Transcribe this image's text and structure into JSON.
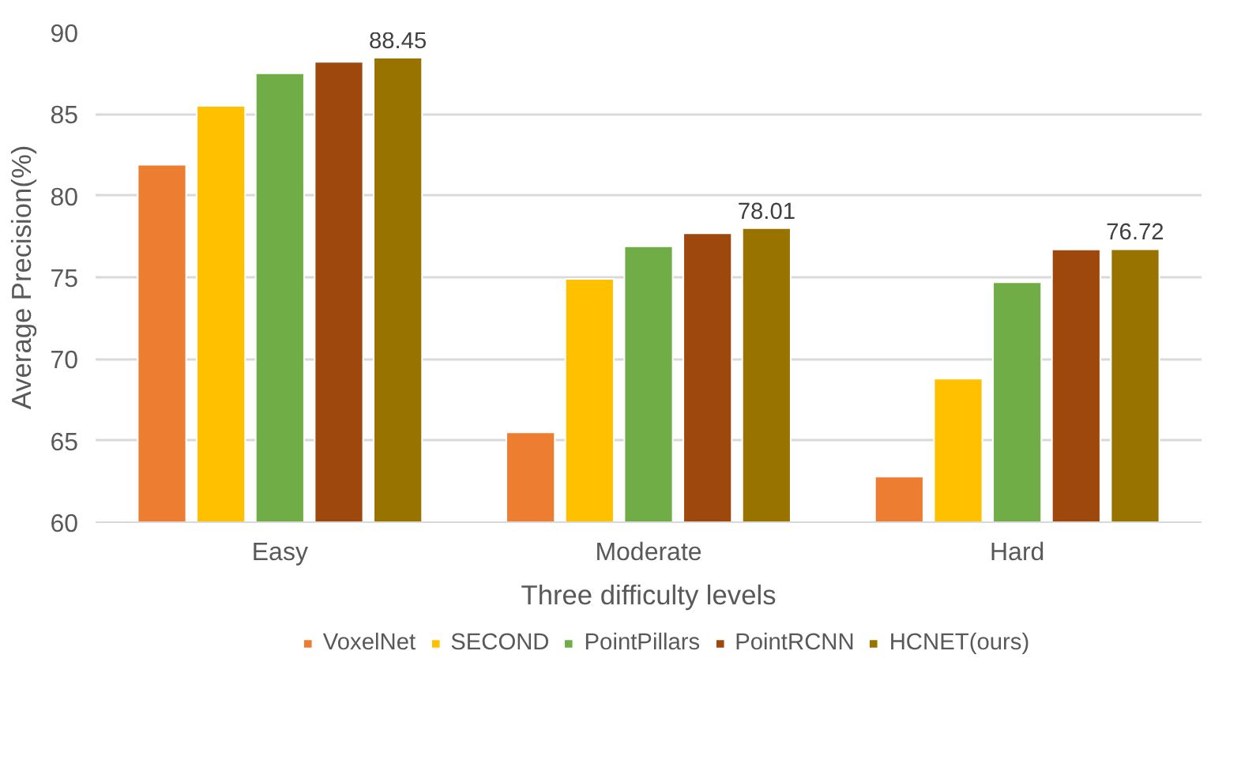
{
  "chart_data": {
    "type": "bar",
    "xlabel": "Three difficulty levels",
    "ylabel": "Average Precision(%)",
    "categories": [
      "Easy",
      "Moderate",
      "Hard"
    ],
    "series": [
      {
        "name": "VoxelNet",
        "color": "#ed7d31",
        "values": [
          81.9,
          65.5,
          62.8
        ]
      },
      {
        "name": "SECOND",
        "color": "#ffc000",
        "values": [
          85.5,
          74.9,
          68.8
        ]
      },
      {
        "name": "PointPillars",
        "color": "#70ad47",
        "values": [
          87.5,
          76.9,
          74.7
        ]
      },
      {
        "name": "PointRCNN",
        "color": "#9e480e",
        "values": [
          88.2,
          77.7,
          76.7
        ]
      },
      {
        "name": "HCNET(ours)",
        "color": "#997300",
        "values": [
          88.45,
          78.01,
          76.72
        ],
        "value_labels": [
          "88.45",
          "78.01",
          "76.72"
        ]
      }
    ],
    "ylim": [
      60,
      90
    ],
    "yticks": [
      60,
      65,
      70,
      75,
      80,
      85,
      90
    ],
    "grid": "y",
    "legend": "bottom"
  }
}
